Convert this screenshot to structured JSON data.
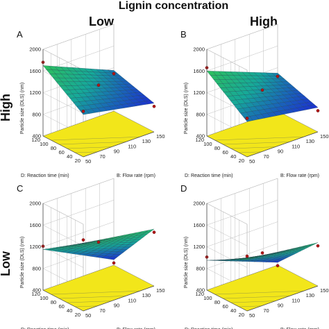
{
  "figure": {
    "column_group_title": "Lignin concentration",
    "column_labels": [
      "Low",
      "High"
    ],
    "row_labels": [
      "High",
      "Low"
    ]
  },
  "colors": {
    "surface_high": "#2ec05a",
    "surface_mid": "#16a89a",
    "surface_low": "#1c2fd0",
    "floor": "#f2e61a",
    "points": "#b01818"
  },
  "chart_data": [
    {
      "panel": "A",
      "type": "surface3d",
      "zlabel": "Particle size (DLS) (nm)",
      "xlabel": "B: Flow rate (rpm)",
      "ylabel": "D: Reaction time (min)",
      "zticks": [
        "2000",
        "1600",
        "1200",
        "800",
        "400"
      ],
      "xticks": [
        "50",
        "70",
        "90",
        "110",
        "130",
        "150"
      ],
      "yticks": [
        "20",
        "40",
        "60",
        "80",
        "100",
        "120"
      ],
      "zlim": [
        400,
        2000
      ],
      "x_range": [
        50,
        150
      ],
      "y_range": [
        20,
        120
      ],
      "surface_corners": {
        "x_min_y_min": 1180,
        "x_max_y_min": 930,
        "x_min_y_max": 1700,
        "x_max_y_max": 1150
      }
    },
    {
      "panel": "B",
      "type": "surface3d",
      "zlabel": "Particle size (DLS) (nm)",
      "xlabel": "B: Flow rate (rpm)",
      "ylabel": "D: Reaction time (min)",
      "zticks": [
        "2000",
        "1600",
        "1200",
        "800",
        "400"
      ],
      "xticks": [
        "50",
        "70",
        "90",
        "110",
        "130",
        "150"
      ],
      "yticks": [
        "20",
        "40",
        "60",
        "80",
        "100",
        "120"
      ],
      "zlim": [
        400,
        2000
      ],
      "x_range": [
        50,
        150
      ],
      "y_range": [
        20,
        120
      ],
      "surface_corners": {
        "x_min_y_min": 1050,
        "x_max_y_min": 850,
        "x_min_y_max": 1600,
        "x_max_y_max": 1100
      }
    },
    {
      "panel": "C",
      "type": "surface3d",
      "zlabel": "Particle size (DLS) (nm)",
      "xlabel": "B: Flow rate (rpm)",
      "ylabel": "D: Reaction time (min)",
      "zticks": [
        "2000",
        "1600",
        "1200",
        "800",
        "400"
      ],
      "xticks": [
        "50",
        "70",
        "90",
        "110",
        "130",
        "150"
      ],
      "yticks": [
        "20",
        "40",
        "60",
        "80",
        "100",
        "120"
      ],
      "zlim": [
        400,
        2000
      ],
      "x_range": [
        50,
        150
      ],
      "y_range": [
        20,
        120
      ],
      "surface_corners": {
        "x_min_y_min": 1650,
        "x_max_y_min": 1450,
        "x_min_y_max": 1150,
        "x_max_y_max": 500
      }
    },
    {
      "panel": "D",
      "type": "surface3d",
      "zlabel": "Particle size (DLS) (nm)",
      "xlabel": "B: Flow rate (rpm)",
      "ylabel": "D: Reaction time (min)",
      "zticks": [
        "2000",
        "1600",
        "1200",
        "800",
        "400"
      ],
      "xticks": [
        "50",
        "70",
        "90",
        "110",
        "130",
        "150"
      ],
      "yticks": [
        "20",
        "40",
        "60",
        "80",
        "100",
        "120"
      ],
      "zlim": [
        400,
        2000
      ],
      "x_range": [
        50,
        150
      ],
      "y_range": [
        20,
        120
      ],
      "surface_corners": {
        "x_min_y_min": 1350,
        "x_max_y_min": 1200,
        "x_min_y_max": 950,
        "x_max_y_max": 450
      }
    }
  ]
}
